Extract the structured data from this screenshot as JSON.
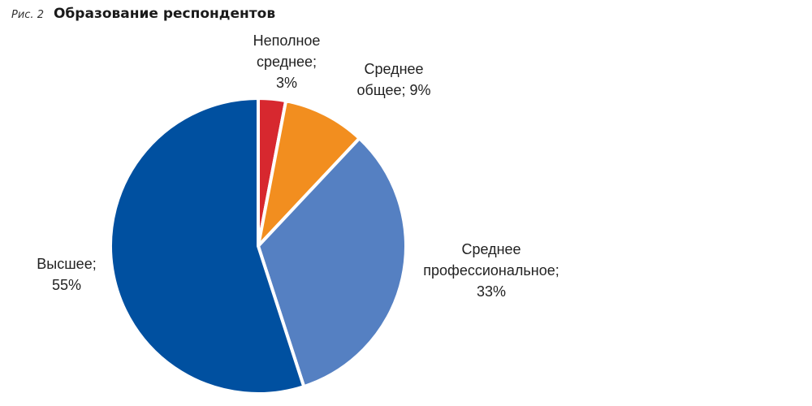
{
  "figure": {
    "number": "Рис. 2",
    "title": "Образование респондентов"
  },
  "chart_data": {
    "type": "pie",
    "title": "Образование респондентов",
    "start_angle_deg": 0,
    "direction": "clockwise",
    "slices": [
      {
        "label_lines": [
          "Неполное",
          "среднее;",
          "3%"
        ],
        "category": "Неполное среднее",
        "value": 3,
        "color": "#d7282f"
      },
      {
        "label_lines": [
          "Среднее",
          "общее; 9%"
        ],
        "category": "Среднее общее",
        "value": 9,
        "color": "#f28e1f"
      },
      {
        "label_lines": [
          "Среднее",
          "профессиональное;",
          "33%"
        ],
        "category": "Среднее профессиональное",
        "value": 33,
        "color": "#5580c2"
      },
      {
        "label_lines": [
          "Высшее;",
          "55%"
        ],
        "category": "Высшее",
        "value": 55,
        "color": "#0050a0"
      }
    ]
  }
}
